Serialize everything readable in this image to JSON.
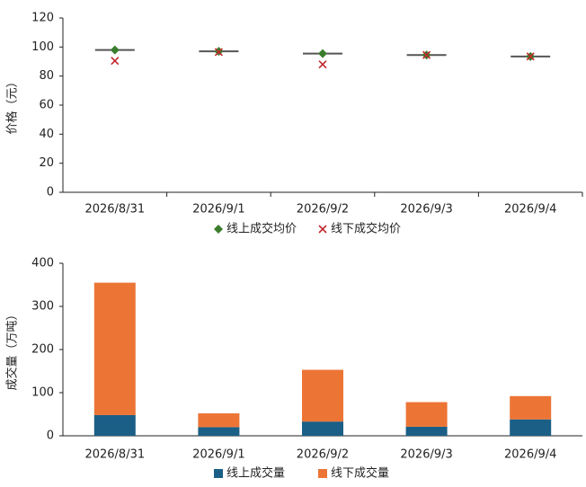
{
  "chart_data": [
    {
      "type": "scatter",
      "y_label": "价格（元）",
      "categories": [
        "2026/8/31",
        "2026/9/1",
        "2026/9/2",
        "2026/9/3",
        "2026/9/4"
      ],
      "series": [
        {
          "marker": "dash",
          "color": "#555555",
          "values": [
            98,
            97,
            95.5,
            94.5,
            93.5
          ]
        },
        {
          "name": "线上成交均价",
          "marker": "diamond",
          "color": "#3a7d2c",
          "values": [
            98,
            97,
            95.5,
            94.5,
            93.5
          ]
        },
        {
          "name": "线下成交均价",
          "marker": "x",
          "color": "#c0282d",
          "values": [
            90.5,
            96.5,
            88,
            94.5,
            93.5
          ]
        }
      ],
      "ylim": [
        0,
        120
      ],
      "yticks": [
        0,
        20,
        40,
        60,
        80,
        100,
        120
      ]
    },
    {
      "type": "stacked-bar",
      "y_label": "成交量（万吨）",
      "categories": [
        "2026/8/31",
        "2026/9/1",
        "2026/9/2",
        "2026/9/3",
        "2026/9/4"
      ],
      "series": [
        {
          "name": "线上成交量",
          "color": "#1b5f86",
          "values": [
            48,
            20,
            33,
            21,
            38
          ]
        },
        {
          "name": "线下成交量",
          "color": "#ec7536",
          "values": [
            307,
            32,
            120,
            57,
            54
          ]
        }
      ],
      "ylim": [
        0,
        400
      ],
      "yticks": [
        0,
        100,
        200,
        300,
        400
      ]
    }
  ]
}
